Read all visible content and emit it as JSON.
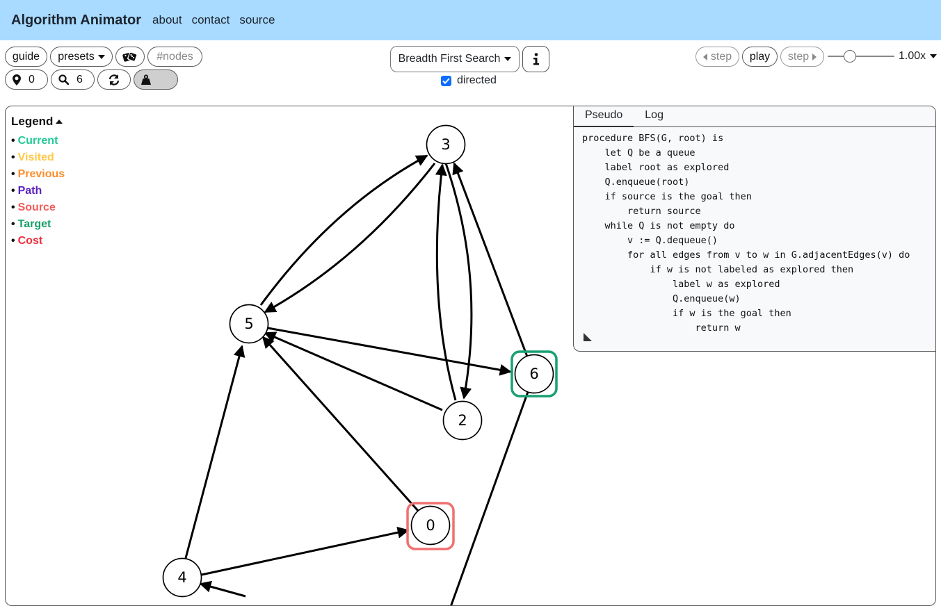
{
  "nav": {
    "brand": "Algorithm Animator",
    "links": [
      "about",
      "contact",
      "source"
    ]
  },
  "toolbar": {
    "guide_label": "guide",
    "presets_label": "presets",
    "nodes_placeholder": "#nodes",
    "source_value": "0",
    "goal_value": "6",
    "algorithm": "Breadth First Search",
    "directed_label": "directed",
    "directed_checked": true,
    "step_back_label": "step",
    "play_label": "play",
    "step_forward_label": "step",
    "speed_fraction": 0.3,
    "speed_label": "1.00x"
  },
  "legend": {
    "title": "Legend",
    "items": [
      {
        "label": "Current",
        "color": "#20c997"
      },
      {
        "label": "Visited",
        "color": "#ffc94a"
      },
      {
        "label": "Previous",
        "color": "#fd8d2a"
      },
      {
        "label": "Path",
        "color": "#5a1fc2"
      },
      {
        "label": "Source",
        "color": "#f25c5c"
      },
      {
        "label": "Target",
        "color": "#17a06c"
      },
      {
        "label": "Cost",
        "color": "#ef2d3a"
      }
    ]
  },
  "graph": {
    "nodes": [
      {
        "label": "3"
      },
      {
        "label": "5"
      },
      {
        "label": "6"
      },
      {
        "label": "2"
      },
      {
        "label": "0"
      },
      {
        "label": "4"
      }
    ],
    "source_color": "#f07070",
    "target_color": "#1aa073"
  },
  "pseudo_panel": {
    "tabs": [
      "Pseudo",
      "Log"
    ],
    "active_tab": "Pseudo",
    "code": [
      "procedure BFS(G, root) is",
      "    let Q be a queue",
      "    label root as explored",
      "    Q.enqueue(root)",
      "    if source is the goal then",
      "        return source",
      "    while Q is not empty do",
      "        v := Q.dequeue()",
      "        for all edges from v to w in G.adjacentEdges(v) do",
      "            if w is not labeled as explored then",
      "                label w as explored",
      "                Q.enqueue(w)",
      "                if w is the goal then",
      "                    return w"
    ]
  }
}
